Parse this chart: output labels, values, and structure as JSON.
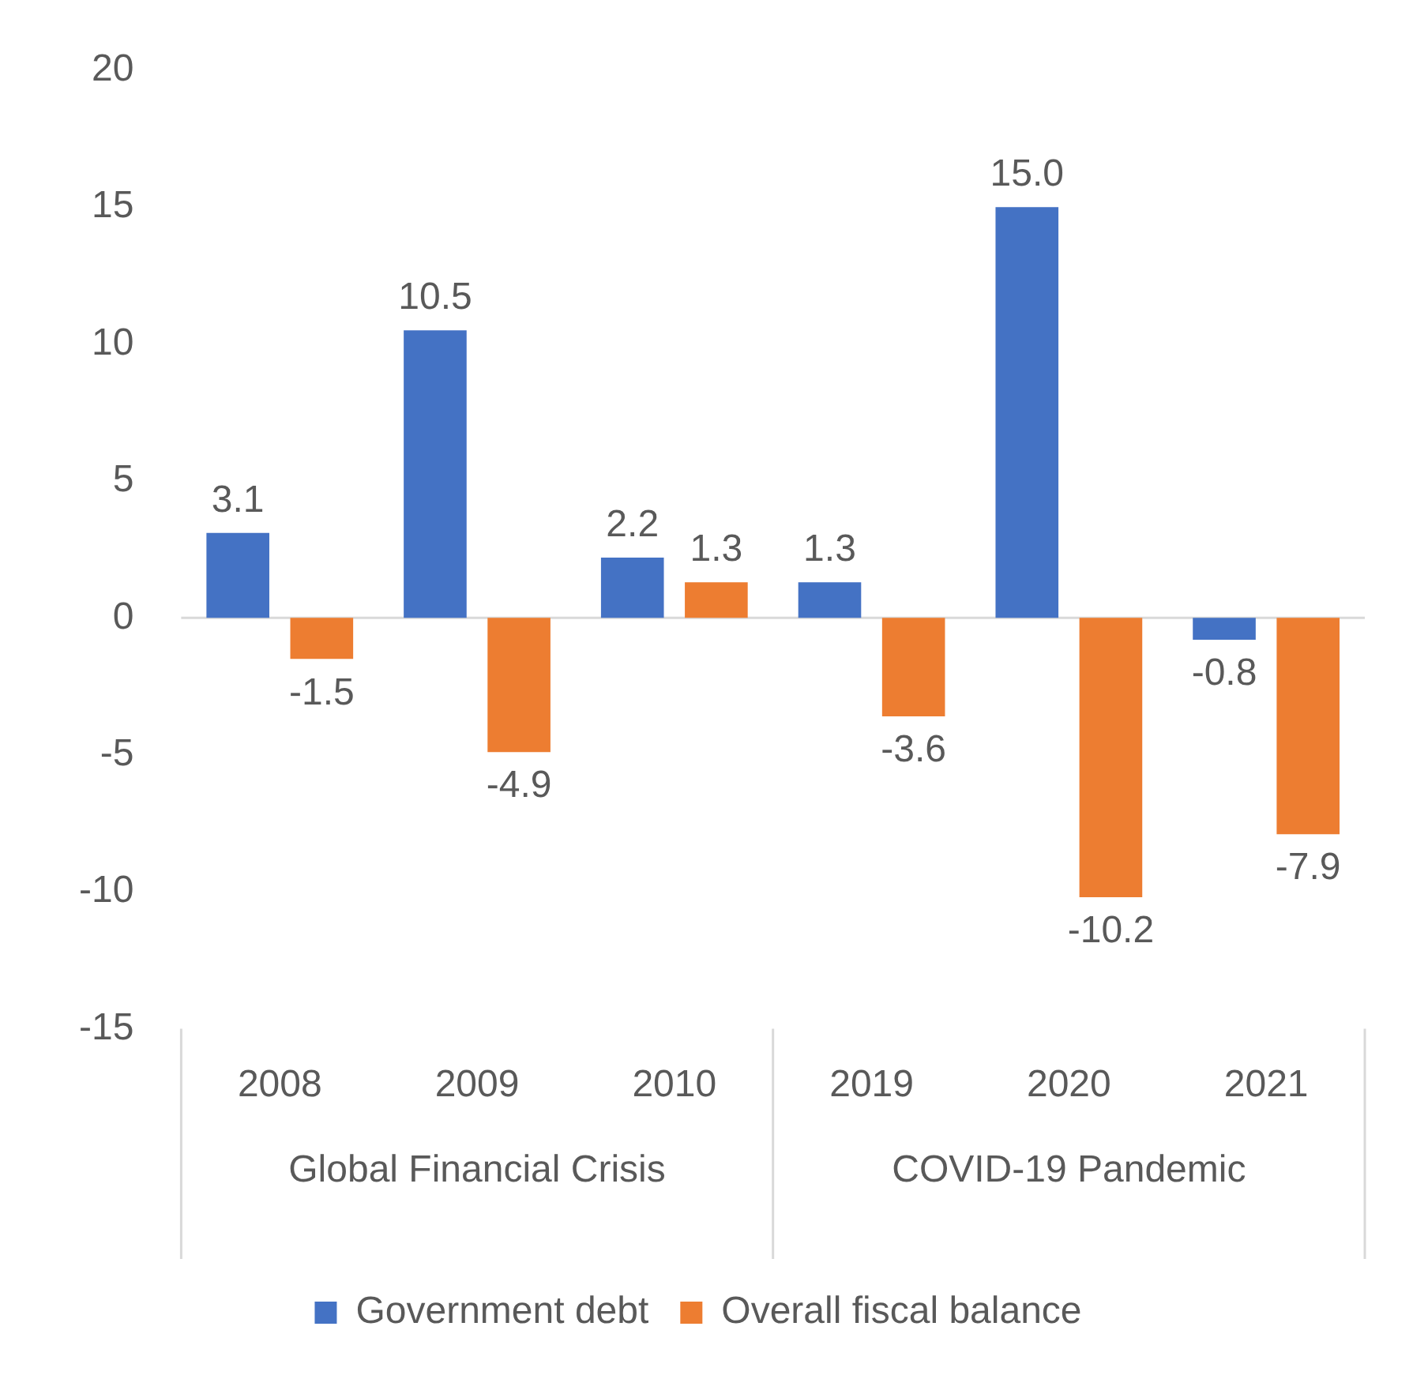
{
  "chart_data": {
    "type": "bar",
    "categories": [
      "2008",
      "2009",
      "2010",
      "2019",
      "2020",
      "2021"
    ],
    "series": [
      {
        "name": "Government debt",
        "color": "#4472c4",
        "values": [
          3.1,
          10.5,
          2.2,
          1.3,
          15.0,
          -0.8
        ],
        "value_labels": [
          "3.1",
          "10.5",
          "2.2",
          "1.3",
          "15.0",
          "-0.8"
        ]
      },
      {
        "name": "Overall fiscal balance",
        "color": "#ed7d31",
        "values": [
          -1.5,
          -4.9,
          1.3,
          -3.6,
          -10.2,
          -7.9
        ],
        "value_labels": [
          "-1.5",
          "-4.9",
          "1.3",
          "-3.6",
          "-10.2",
          "-7.9"
        ]
      }
    ],
    "ylim": [
      -15,
      20
    ],
    "yticks": [
      -15,
      -10,
      -5,
      0,
      5,
      10,
      15,
      20
    ],
    "annotations": [
      "Global Financial Crisis",
      "COVID-19 Pandemic"
    ],
    "legend": "bottom"
  }
}
